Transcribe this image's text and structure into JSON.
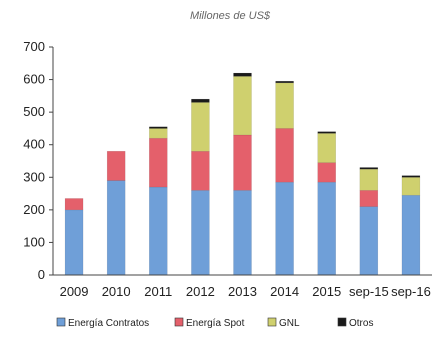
{
  "chart_data": {
    "type": "bar",
    "stacked": true,
    "title": "Millones de US$",
    "xlabel": "",
    "ylabel": "",
    "categories": [
      "2009",
      "2010",
      "2011",
      "2012",
      "2013",
      "2014",
      "2015",
      "sep-15",
      "sep-16"
    ],
    "ylim": [
      0,
      700
    ],
    "yticks": [
      0,
      100,
      200,
      300,
      400,
      500,
      600,
      700
    ],
    "grid": false,
    "legend_position": "bottom",
    "series": [
      {
        "name": "Energía Contratos",
        "color": "#6f9fd8",
        "values": [
          200,
          290,
          270,
          260,
          260,
          285,
          285,
          210,
          245
        ]
      },
      {
        "name": "Energía Spot",
        "color": "#e4606b",
        "values": [
          35,
          90,
          150,
          120,
          170,
          165,
          60,
          50,
          0
        ]
      },
      {
        "name": "GNL",
        "color": "#cfd06e",
        "values": [
          0,
          0,
          30,
          150,
          180,
          140,
          90,
          65,
          55
        ]
      },
      {
        "name": "Otros",
        "color": "#1a1a1a",
        "values": [
          0,
          0,
          5,
          10,
          10,
          5,
          5,
          5,
          5
        ]
      }
    ]
  }
}
